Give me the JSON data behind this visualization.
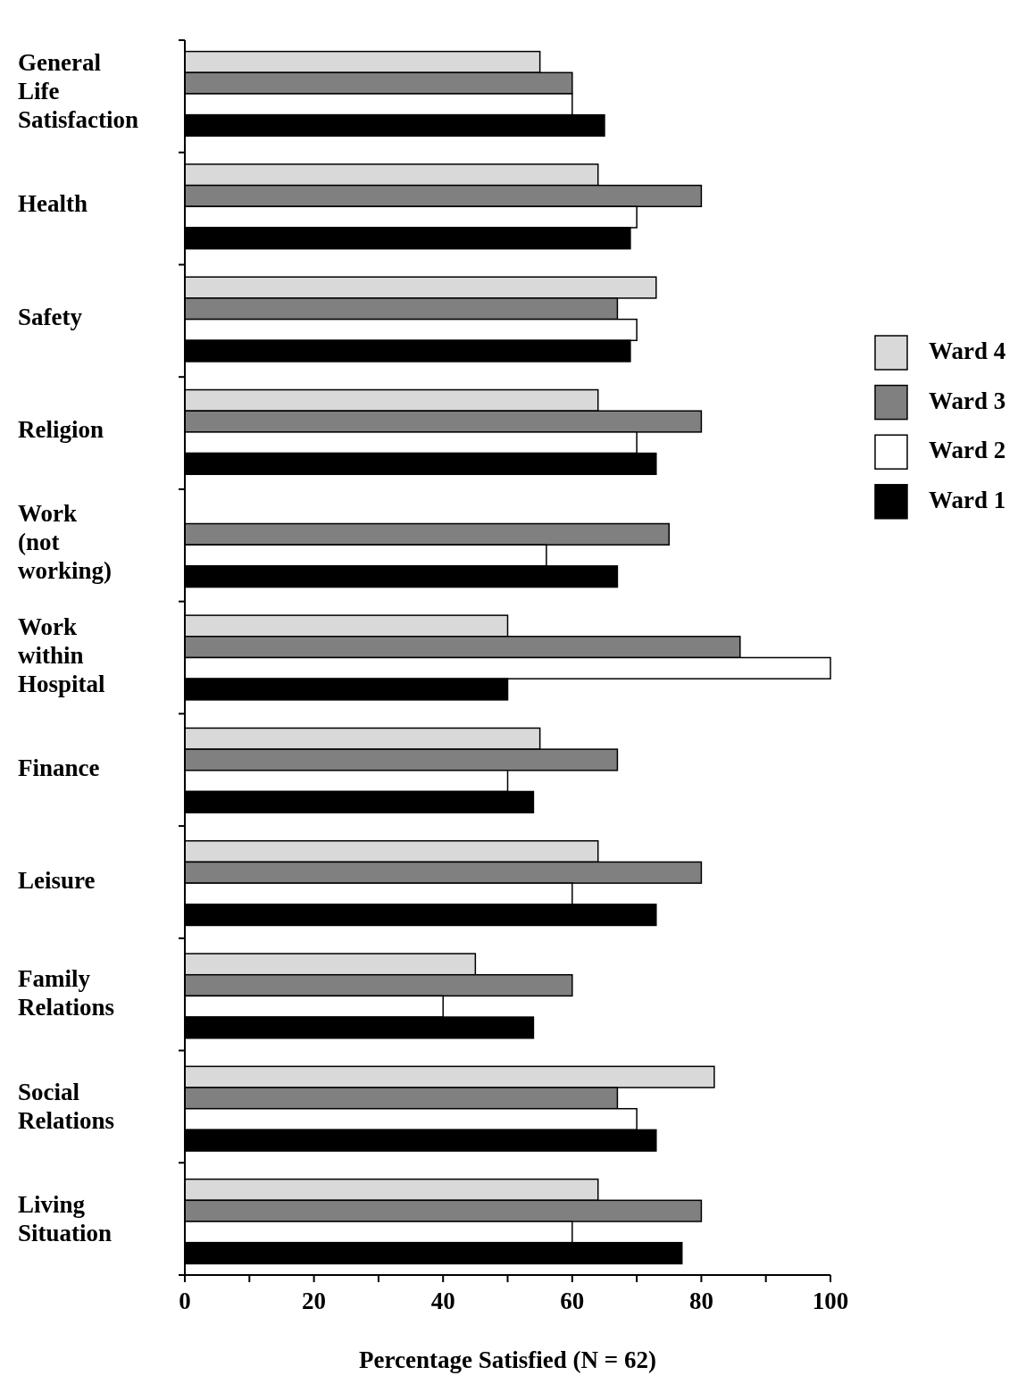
{
  "chart_data": {
    "type": "bar",
    "orientation": "horizontal",
    "xlabel": "Percentage Satisfied (N = 62)",
    "categories": [
      "General Life Satisfaction",
      "Health",
      "Safety",
      "Religion",
      "Work (not working)",
      "Work within Hospital",
      "Finance",
      "Leisure",
      "Family Relations",
      "Social Relations",
      "Living Situation"
    ],
    "series": [
      {
        "name": "Ward 4",
        "color": "#d9d9d9",
        "values": [
          55,
          64,
          73,
          64,
          null,
          50,
          55,
          64,
          45,
          82,
          64
        ]
      },
      {
        "name": "Ward 3",
        "color": "#808080",
        "values": [
          60,
          80,
          67,
          80,
          75,
          86,
          67,
          80,
          60,
          67,
          80
        ]
      },
      {
        "name": "Ward 2",
        "color": "#ffffff",
        "values": [
          60,
          70,
          70,
          70,
          56,
          100,
          50,
          60,
          40,
          70,
          60
        ]
      },
      {
        "name": "Ward 1",
        "color": "#000000",
        "values": [
          65,
          69,
          69,
          73,
          67,
          50,
          54,
          73,
          54,
          73,
          77
        ]
      }
    ],
    "xlim": [
      0,
      100
    ],
    "xticks": [
      0,
      {
        "value": 10,
        "label": null
      },
      20,
      {
        "value": 30,
        "label": null
      },
      40,
      {
        "value": 50,
        "label": null
      },
      60,
      {
        "value": 70,
        "label": null
      },
      80,
      {
        "value": 90,
        "label": null
      },
      100
    ],
    "legend": "right"
  }
}
